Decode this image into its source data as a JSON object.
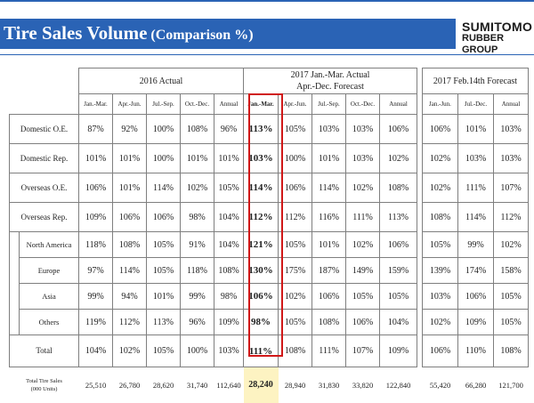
{
  "header": {
    "title": "Tire Sales Volume",
    "subtitle": "(Comparison %)",
    "logo_line1": "SUMITOMO",
    "logo_line2": "RUBBER GROUP",
    "accent": "#2a63b5",
    "highlight_color": "#d01818"
  },
  "table": {
    "group_2016": "2016 Actual",
    "group_2017_line1": "2017 Jan.-Mar. Actual",
    "group_2017_line2": "Apr.-Dec. Forecast",
    "group_forecast": "2017 Feb.14th Forecast",
    "cols_2016": [
      "Jan.-Mar.",
      "Apr.-Jun.",
      "Jul.-Sep.",
      "Oct.-Dec.",
      "Annual"
    ],
    "cols_2017": [
      "Jan.-Mar.",
      "Apr.-Jun.",
      "Jul.-Sep.",
      "Oct.-Dec.",
      "Annual"
    ],
    "cols_fc": [
      "Jan.-Jun.",
      "Jul.-Dec.",
      "Annual"
    ],
    "rows": [
      {
        "label": "Domestic O.E.",
        "v2016": [
          "87%",
          "92%",
          "100%",
          "108%",
          "96%"
        ],
        "v2017": [
          "113%",
          "105%",
          "103%",
          "103%",
          "106%"
        ],
        "vfc": [
          "106%",
          "101%",
          "103%"
        ]
      },
      {
        "label": "Domestic Rep.",
        "v2016": [
          "101%",
          "101%",
          "100%",
          "101%",
          "101%"
        ],
        "v2017": [
          "103%",
          "100%",
          "101%",
          "103%",
          "102%"
        ],
        "vfc": [
          "102%",
          "103%",
          "103%"
        ]
      },
      {
        "label": "Overseas O.E.",
        "v2016": [
          "106%",
          "101%",
          "114%",
          "102%",
          "105%"
        ],
        "v2017": [
          "114%",
          "106%",
          "114%",
          "102%",
          "108%"
        ],
        "vfc": [
          "102%",
          "111%",
          "107%"
        ]
      },
      {
        "label": "Overseas Rep.",
        "v2016": [
          "109%",
          "106%",
          "106%",
          "98%",
          "104%"
        ],
        "v2017": [
          "112%",
          "112%",
          "116%",
          "111%",
          "113%"
        ],
        "vfc": [
          "108%",
          "114%",
          "112%"
        ]
      },
      {
        "label": "North America",
        "v2016": [
          "118%",
          "108%",
          "105%",
          "91%",
          "104%"
        ],
        "v2017": [
          "121%",
          "105%",
          "101%",
          "102%",
          "106%"
        ],
        "vfc": [
          "105%",
          "99%",
          "102%"
        ]
      },
      {
        "label": "Europe",
        "v2016": [
          "97%",
          "114%",
          "105%",
          "118%",
          "108%"
        ],
        "v2017": [
          "130%",
          "175%",
          "187%",
          "149%",
          "159%"
        ],
        "vfc": [
          "139%",
          "174%",
          "158%"
        ]
      },
      {
        "label": "Asia",
        "v2016": [
          "99%",
          "94%",
          "101%",
          "99%",
          "98%"
        ],
        "v2017": [
          "106%",
          "102%",
          "106%",
          "105%",
          "105%"
        ],
        "vfc": [
          "103%",
          "106%",
          "105%"
        ]
      },
      {
        "label": "Others",
        "v2016": [
          "119%",
          "112%",
          "113%",
          "96%",
          "109%"
        ],
        "v2017": [
          "98%",
          "105%",
          "108%",
          "106%",
          "104%"
        ],
        "vfc": [
          "102%",
          "109%",
          "105%"
        ]
      },
      {
        "label": "Total",
        "v2016": [
          "104%",
          "102%",
          "105%",
          "100%",
          "103%"
        ],
        "v2017": [
          "111%",
          "108%",
          "111%",
          "107%",
          "109%"
        ],
        "vfc": [
          "106%",
          "110%",
          "108%"
        ]
      }
    ],
    "footer_label_line1": "Total Tire Sales",
    "footer_label_line2": "(000 Units)",
    "footer_2016": [
      "25,510",
      "26,780",
      "28,620",
      "31,740",
      "112,640"
    ],
    "footer_2017": [
      "28,240",
      "28,940",
      "31,830",
      "33,820",
      "122,840"
    ],
    "footer_fc": [
      "55,420",
      "66,280",
      "121,700"
    ]
  }
}
